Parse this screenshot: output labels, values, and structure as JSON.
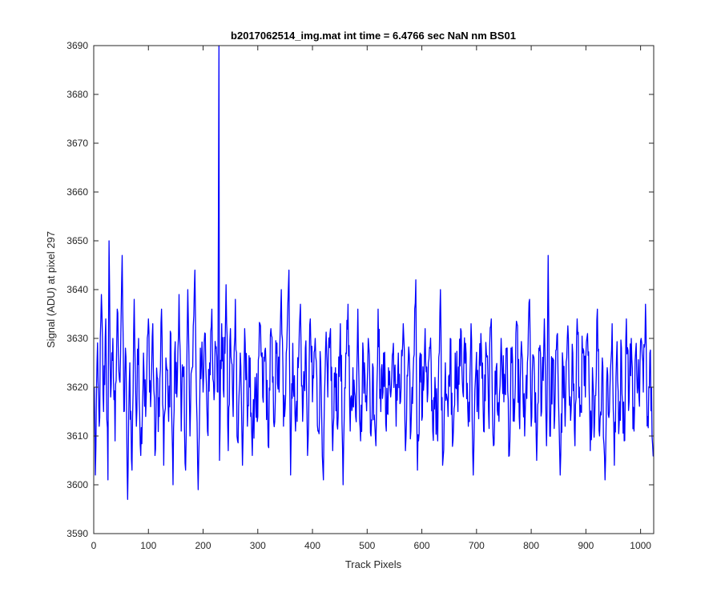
{
  "chart_data": {
    "type": "line",
    "title": "b2017062514_img.mat int time = 6.4766 sec  NaN nm BS01",
    "xlabel": "Track Pixels",
    "ylabel": "Signal (ADU) at pixel 297",
    "xlim": [
      0,
      1024
    ],
    "ylim": [
      3590,
      3690
    ],
    "xticks": [
      0,
      100,
      200,
      300,
      400,
      500,
      600,
      700,
      800,
      900,
      1000
    ],
    "yticks": [
      3590,
      3600,
      3610,
      3620,
      3630,
      3640,
      3650,
      3660,
      3670,
      3680,
      3690
    ],
    "grid": false,
    "legend": "none",
    "series": [
      {
        "color": "#0000ff",
        "x_start": 1,
        "x_step": 1,
        "keypoints": [
          [
            1,
            3620
          ],
          [
            3,
            3602
          ],
          [
            6,
            3625
          ],
          [
            10,
            3612
          ],
          [
            14,
            3639
          ],
          [
            18,
            3615
          ],
          [
            22,
            3634
          ],
          [
            26,
            3601
          ],
          [
            28,
            3650
          ],
          [
            31,
            3618
          ],
          [
            35,
            3630
          ],
          [
            39,
            3609
          ],
          [
            43,
            3636
          ],
          [
            48,
            3621
          ],
          [
            52,
            3647
          ],
          [
            55,
            3615
          ],
          [
            58,
            3628
          ],
          [
            62,
            3597
          ],
          [
            66,
            3625
          ],
          [
            70,
            3603
          ],
          [
            74,
            3638
          ],
          [
            78,
            3612
          ],
          [
            82,
            3630
          ],
          [
            86,
            3606
          ],
          [
            91,
            3627
          ],
          [
            95,
            3614
          ],
          [
            100,
            3634
          ],
          [
            104,
            3616
          ],
          [
            108,
            3633
          ],
          [
            112,
            3606
          ],
          [
            116,
            3622
          ],
          [
            120,
            3614
          ],
          [
            124,
            3636
          ],
          [
            128,
            3604
          ],
          [
            132,
            3626
          ],
          [
            137,
            3613
          ],
          [
            141,
            3631
          ],
          [
            145,
            3600
          ],
          [
            148,
            3627
          ],
          [
            152,
            3618
          ],
          [
            156,
            3639
          ],
          [
            160,
            3611
          ],
          [
            164,
            3624
          ],
          [
            168,
            3603
          ],
          [
            172,
            3640
          ],
          [
            176,
            3610
          ],
          [
            180,
            3624
          ],
          [
            185,
            3644
          ],
          [
            188,
            3617
          ],
          [
            191,
            3599
          ],
          [
            195,
            3628
          ],
          [
            200,
            3619
          ],
          [
            204,
            3631
          ],
          [
            208,
            3611
          ],
          [
            212,
            3625
          ],
          [
            216,
            3636
          ],
          [
            219,
            3621
          ],
          [
            223,
            3628
          ],
          [
            227,
            3619
          ],
          [
            229,
            3690
          ],
          [
            230,
            3605
          ],
          [
            234,
            3633
          ],
          [
            238,
            3618
          ],
          [
            242,
            3641
          ],
          [
            246,
            3607
          ],
          [
            250,
            3632
          ],
          [
            255,
            3614
          ],
          [
            259,
            3638
          ],
          [
            263,
            3609
          ],
          [
            268,
            3627
          ],
          [
            272,
            3604
          ],
          [
            276,
            3632
          ],
          [
            281,
            3612
          ],
          [
            286,
            3626
          ],
          [
            290,
            3606
          ],
          [
            295,
            3622
          ],
          [
            300,
            3614
          ],
          [
            304,
            3633
          ],
          [
            309,
            3618
          ],
          [
            314,
            3628
          ],
          [
            319,
            3608
          ],
          [
            324,
            3632
          ],
          [
            329,
            3613
          ],
          [
            334,
            3627
          ],
          [
            339,
            3619
          ],
          [
            343,
            3640
          ],
          [
            347,
            3612
          ],
          [
            352,
            3627
          ],
          [
            357,
            3644
          ],
          [
            360,
            3602
          ],
          [
            364,
            3629
          ],
          [
            369,
            3611
          ],
          [
            374,
            3624
          ],
          [
            378,
            3637
          ],
          [
            382,
            3613
          ],
          [
            387,
            3628
          ],
          [
            391,
            3606
          ],
          [
            396,
            3634
          ],
          [
            400,
            3617
          ],
          [
            405,
            3630
          ],
          [
            410,
            3611
          ],
          [
            415,
            3625
          ],
          [
            420,
            3601
          ],
          [
            424,
            3628
          ],
          [
            428,
            3618
          ],
          [
            433,
            3632
          ],
          [
            437,
            3607
          ],
          [
            442,
            3624
          ],
          [
            447,
            3614
          ],
          [
            451,
            3633
          ],
          [
            456,
            3600
          ],
          [
            461,
            3627
          ],
          [
            465,
            3637
          ],
          [
            469,
            3611
          ],
          [
            474,
            3624
          ],
          [
            479,
            3614
          ],
          [
            483,
            3636
          ],
          [
            488,
            3609
          ],
          [
            493,
            3627
          ],
          [
            497,
            3617
          ],
          [
            502,
            3630
          ],
          [
            507,
            3610
          ],
          [
            511,
            3624
          ],
          [
            516,
            3608
          ],
          [
            520,
            3636
          ],
          [
            525,
            3615
          ],
          [
            530,
            3627
          ],
          [
            535,
            3611
          ],
          [
            539,
            3624
          ],
          [
            543,
            3618
          ],
          [
            548,
            3629
          ],
          [
            553,
            3612
          ],
          [
            557,
            3627
          ],
          [
            561,
            3617
          ],
          [
            566,
            3633
          ],
          [
            570,
            3607
          ],
          [
            575,
            3625
          ],
          [
            580,
            3611
          ],
          [
            585,
            3626
          ],
          [
            589,
            3642
          ],
          [
            592,
            3603
          ],
          [
            597,
            3627
          ],
          [
            601,
            3614
          ],
          [
            606,
            3632
          ],
          [
            610,
            3617
          ],
          [
            615,
            3628
          ],
          [
            620,
            3611
          ],
          [
            624,
            3622
          ],
          [
            629,
            3609
          ],
          [
            634,
            3640
          ],
          [
            638,
            3604
          ],
          [
            643,
            3625
          ],
          [
            648,
            3614
          ],
          [
            652,
            3630
          ],
          [
            657,
            3609
          ],
          [
            661,
            3627
          ],
          [
            666,
            3615
          ],
          [
            671,
            3632
          ],
          [
            675,
            3619
          ],
          [
            680,
            3629
          ],
          [
            685,
            3612
          ],
          [
            690,
            3633
          ],
          [
            694,
            3602
          ],
          [
            699,
            3624
          ],
          [
            703,
            3617
          ],
          [
            708,
            3631
          ],
          [
            713,
            3611
          ],
          [
            718,
            3627
          ],
          [
            722,
            3615
          ],
          [
            727,
            3634
          ],
          [
            731,
            3608
          ],
          [
            736,
            3624
          ],
          [
            741,
            3613
          ],
          [
            745,
            3630
          ],
          [
            750,
            3617
          ],
          [
            755,
            3628
          ],
          [
            760,
            3606
          ],
          [
            764,
            3625
          ],
          [
            769,
            3613
          ],
          [
            774,
            3633
          ],
          [
            778,
            3614
          ],
          [
            783,
            3627
          ],
          [
            788,
            3610
          ],
          [
            793,
            3625
          ],
          [
            797,
            3638
          ],
          [
            800,
            3612
          ],
          [
            805,
            3626
          ],
          [
            810,
            3605
          ],
          [
            814,
            3628
          ],
          [
            819,
            3615
          ],
          [
            824,
            3634
          ],
          [
            828,
            3608
          ],
          [
            831,
            3647
          ],
          [
            834,
            3610
          ],
          [
            839,
            3626
          ],
          [
            843,
            3614
          ],
          [
            848,
            3631
          ],
          [
            853,
            3602
          ],
          [
            858,
            3625
          ],
          [
            862,
            3612
          ],
          [
            866,
            3630
          ],
          [
            871,
            3618
          ],
          [
            876,
            3627
          ],
          [
            880,
            3608
          ],
          [
            884,
            3634
          ],
          [
            889,
            3614
          ],
          [
            894,
            3627
          ],
          [
            899,
            3618
          ],
          [
            903,
            3631
          ],
          [
            908,
            3607
          ],
          [
            912,
            3624
          ],
          [
            916,
            3613
          ],
          [
            921,
            3636
          ],
          [
            925,
            3610
          ],
          [
            930,
            3626
          ],
          [
            935,
            3601
          ],
          [
            939,
            3624
          ],
          [
            943,
            3615
          ],
          [
            948,
            3633
          ],
          [
            952,
            3604
          ],
          [
            956,
            3626
          ],
          [
            961,
            3613
          ],
          [
            965,
            3628
          ],
          [
            970,
            3609
          ],
          [
            974,
            3634
          ],
          [
            979,
            3617
          ],
          [
            983,
            3630
          ],
          [
            988,
            3611
          ],
          [
            992,
            3629
          ],
          [
            997,
            3618
          ],
          [
            1001,
            3630
          ],
          [
            1005,
            3619
          ],
          [
            1009,
            3637
          ],
          [
            1013,
            3614
          ],
          [
            1017,
            3627
          ],
          [
            1020,
            3620
          ],
          [
            1024,
            3606
          ]
        ]
      }
    ]
  }
}
